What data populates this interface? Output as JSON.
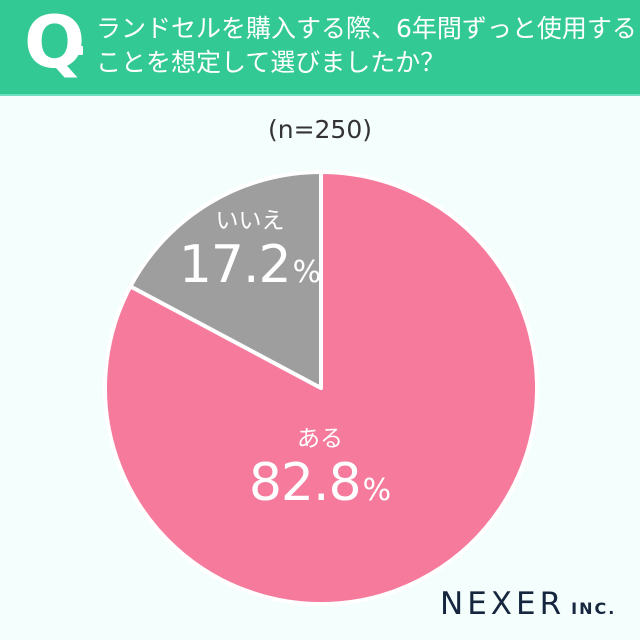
{
  "header": {
    "q_mark": "Q",
    "question_line1": "ランドセルを購入する際、6年間ずっと使用する",
    "question_line2": "ことを想定して選びましたか？"
  },
  "sample_size": "(n=250)",
  "colors": {
    "header_bg": "#33C994",
    "background": "#F4FEFC",
    "yes_slice": "#F57A9C",
    "no_slice": "#9E9E9E",
    "logo": "#16263F"
  },
  "slices": [
    {
      "label": "ある",
      "value": "82.8",
      "unit": "%"
    },
    {
      "label": "いいえ",
      "value": "17.2",
      "unit": "%"
    }
  ],
  "logo": {
    "main": "NEXER",
    "sub": "INC."
  },
  "chart_data": {
    "type": "pie",
    "title": "ランドセルを購入する際、6年間ずっと使用することを想定して選びましたか？",
    "subtitle": "(n=250)",
    "categories": [
      "ある",
      "いいえ"
    ],
    "values": [
      82.8,
      17.2
    ],
    "unit": "%",
    "colors": [
      "#F57A9C",
      "#9E9E9E"
    ],
    "start_angle": "12 o'clock, clockwise",
    "legend": "none (labels inside slices)",
    "source": "NEXER INC."
  }
}
